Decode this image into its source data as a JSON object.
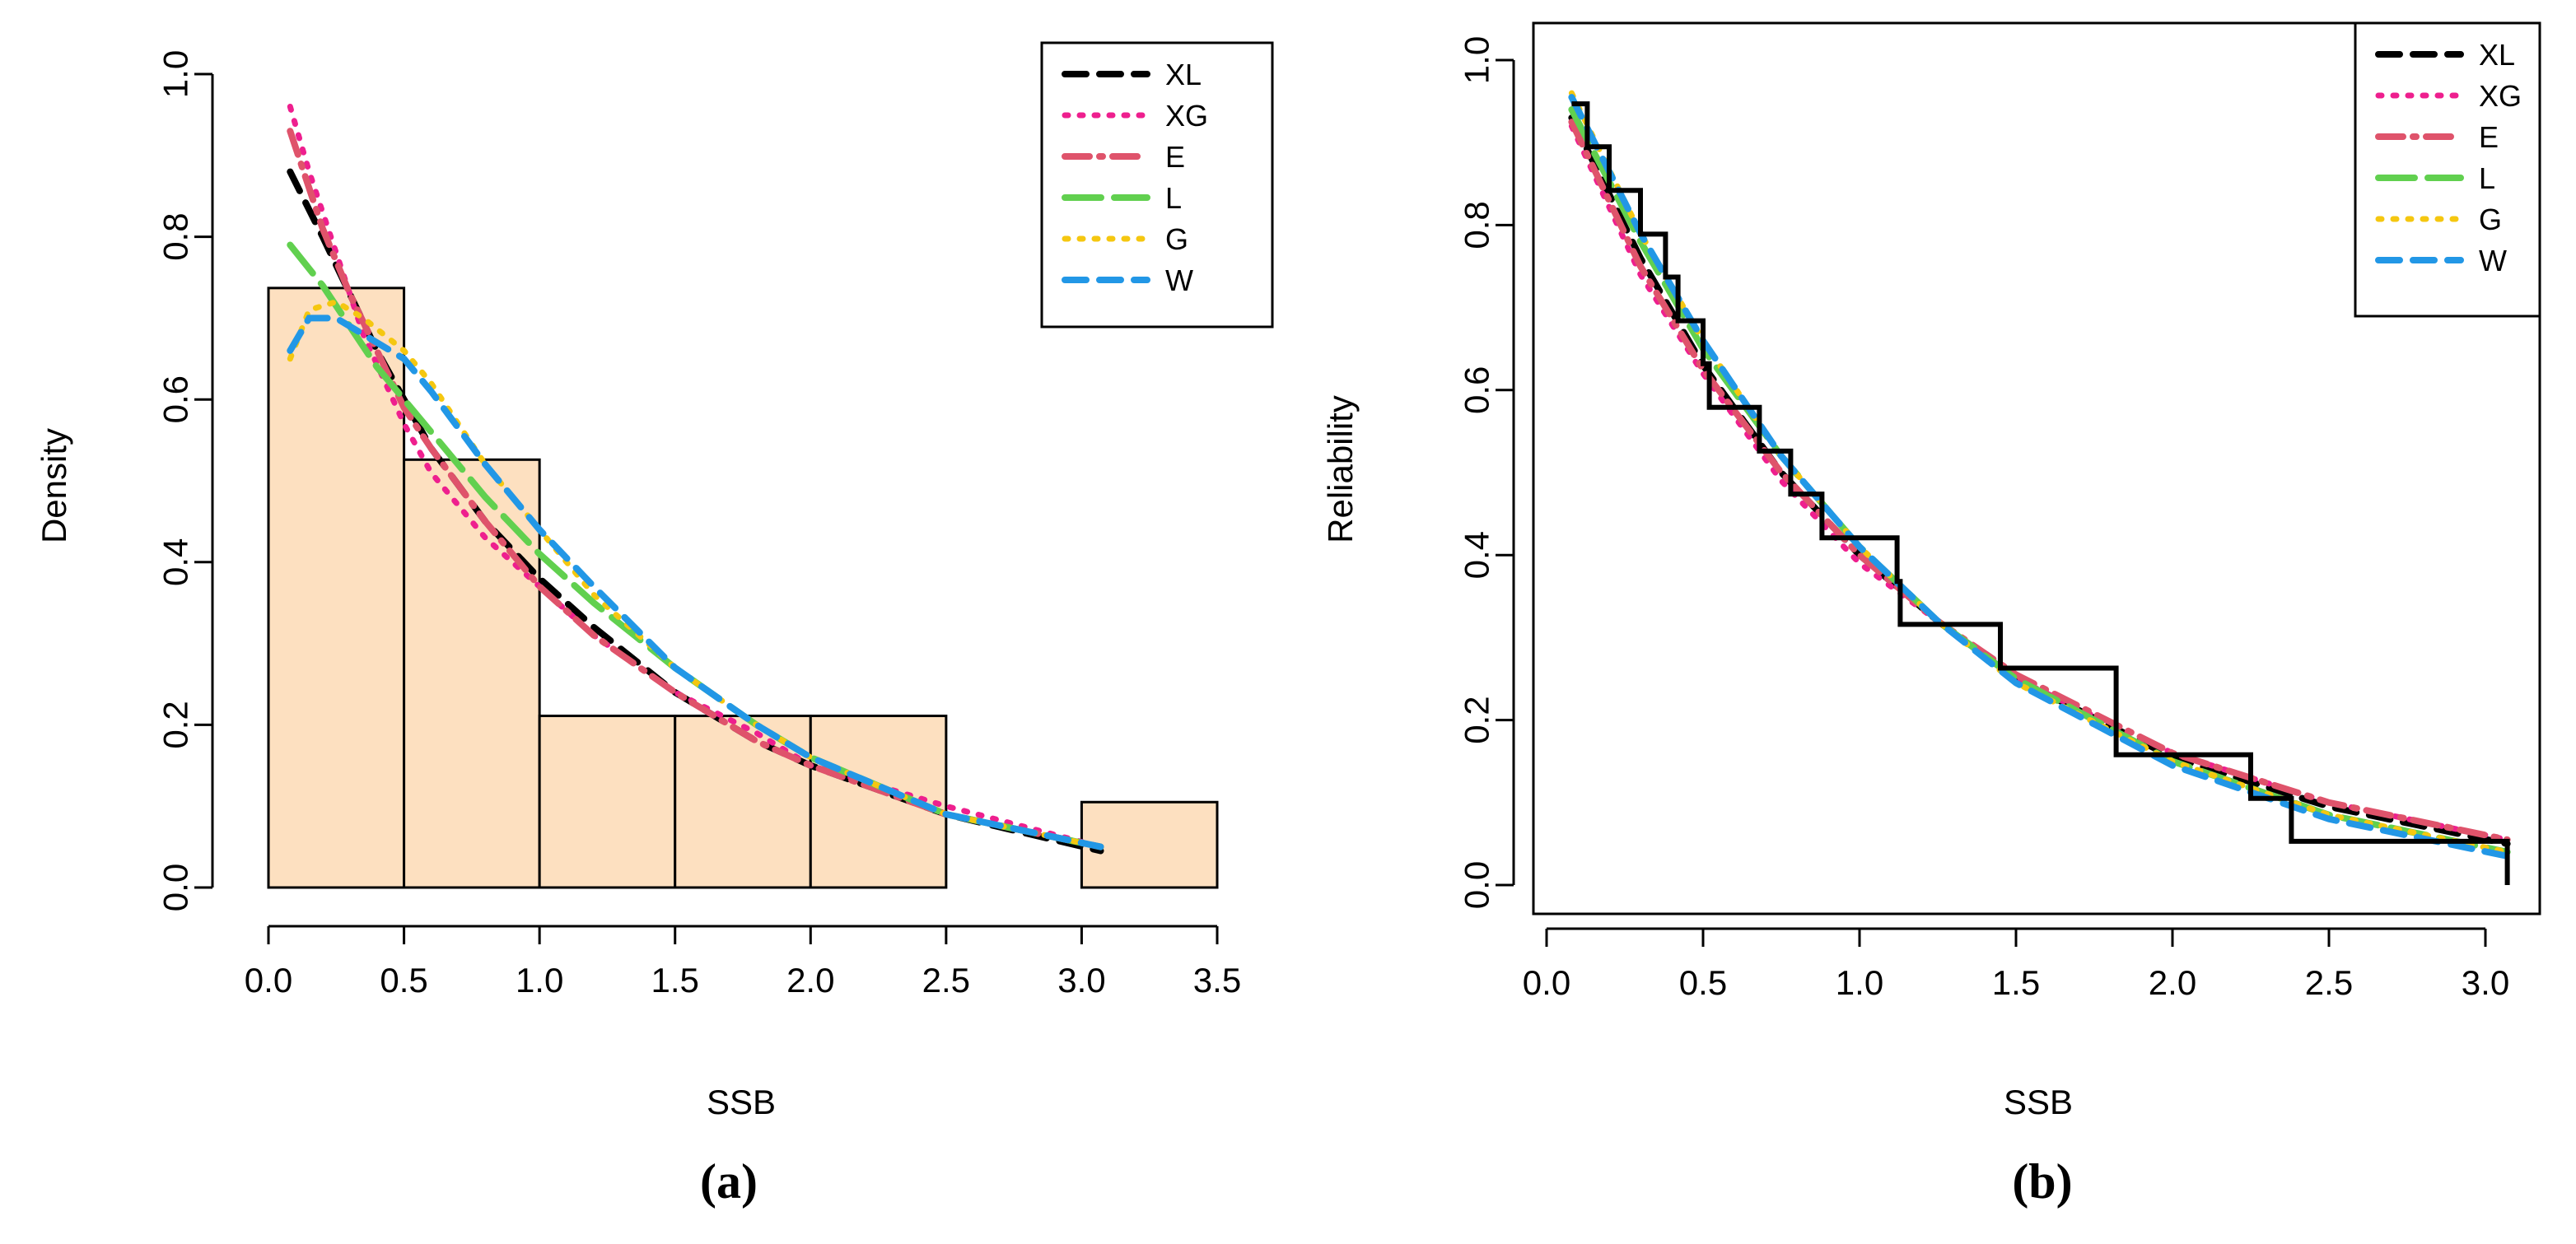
{
  "charts": [
    {
      "caption": "(a)",
      "chart_data": {
        "type": "histogram",
        "xlabel": "SSB",
        "ylabel": "Density",
        "xlim": [
          0,
          3.5
        ],
        "ylim": [
          0,
          1.0
        ],
        "xticks": [
          "0.0",
          "0.5",
          "1.0",
          "1.5",
          "2.0",
          "2.5",
          "3.0",
          "3.5"
        ],
        "yticks": [
          "0.0",
          "0.2",
          "0.4",
          "0.6",
          "0.8",
          "1.0"
        ],
        "histogram": {
          "bins": [
            [
              0.0,
              0.5
            ],
            [
              0.5,
              1.0
            ],
            [
              1.0,
              1.5
            ],
            [
              1.5,
              2.0
            ],
            [
              2.0,
              2.5
            ],
            [
              2.5,
              3.0
            ],
            [
              3.0,
              3.5
            ]
          ],
          "density": [
            0.737,
            0.526,
            0.211,
            0.211,
            0.211,
            0.0,
            0.105
          ],
          "fill": "#fde0c0"
        },
        "legend_position": "top-right",
        "series": [
          {
            "name": "XL",
            "color": "#000000",
            "dash": "dashed",
            "x": [
              0.08,
              0.2,
              0.3,
              0.4,
              0.5,
              0.6,
              0.8,
              1.0,
              1.2,
              1.5,
              1.8,
              2.0,
              2.5,
              3.07
            ],
            "y": [
              0.88,
              0.8,
              0.73,
              0.66,
              0.6,
              0.54,
              0.45,
              0.38,
              0.32,
              0.24,
              0.18,
              0.15,
              0.09,
              0.045
            ]
          },
          {
            "name": "XG",
            "color": "#ee1f8e",
            "dash": "dotted",
            "x": [
              0.08,
              0.15,
              0.25,
              0.35,
              0.5,
              0.6,
              0.8,
              1.0,
              1.2,
              1.5,
              1.8,
              2.0,
              2.5,
              3.07
            ],
            "y": [
              0.96,
              0.88,
              0.78,
              0.68,
              0.57,
              0.51,
              0.43,
              0.37,
              0.31,
              0.24,
              0.19,
              0.15,
              0.1,
              0.05
            ]
          },
          {
            "name": "E",
            "color": "#df536b",
            "dash": "dashdot",
            "x": [
              0.08,
              0.2,
              0.3,
              0.4,
              0.5,
              0.6,
              0.8,
              1.0,
              1.2,
              1.5,
              1.8,
              2.0,
              2.5,
              3.07
            ],
            "y": [
              0.93,
              0.81,
              0.73,
              0.66,
              0.59,
              0.54,
              0.45,
              0.37,
              0.31,
              0.24,
              0.18,
              0.15,
              0.09,
              0.05
            ]
          },
          {
            "name": "L",
            "color": "#61d04f",
            "dash": "longdash",
            "x": [
              0.08,
              0.2,
              0.3,
              0.4,
              0.5,
              0.6,
              0.8,
              1.0,
              1.2,
              1.5,
              1.8,
              2.0,
              2.5,
              3.07
            ],
            "y": [
              0.79,
              0.74,
              0.69,
              0.64,
              0.6,
              0.56,
              0.48,
              0.41,
              0.35,
              0.27,
              0.2,
              0.16,
              0.09,
              0.05
            ]
          },
          {
            "name": "G",
            "color": "#f5c710",
            "dash": "dotted",
            "x": [
              0.08,
              0.15,
              0.25,
              0.35,
              0.5,
              0.6,
              0.8,
              1.0,
              1.2,
              1.5,
              1.8,
              2.0,
              2.5,
              3.07
            ],
            "y": [
              0.65,
              0.71,
              0.72,
              0.7,
              0.66,
              0.62,
              0.52,
              0.44,
              0.36,
              0.27,
              0.2,
              0.16,
              0.09,
              0.05
            ]
          },
          {
            "name": "W",
            "color": "#2297e6",
            "dash": "dashed",
            "x": [
              0.08,
              0.15,
              0.25,
              0.35,
              0.5,
              0.6,
              0.8,
              1.0,
              1.2,
              1.5,
              1.8,
              2.0,
              2.5,
              3.07
            ],
            "y": [
              0.66,
              0.7,
              0.7,
              0.68,
              0.65,
              0.61,
              0.52,
              0.44,
              0.37,
              0.27,
              0.2,
              0.16,
              0.09,
              0.05
            ]
          }
        ]
      }
    },
    {
      "caption": "(b)",
      "chart_data": {
        "type": "line",
        "xlabel": "SSB",
        "ylabel": "Reliability",
        "xlim": [
          0.08,
          3.07
        ],
        "ylim": [
          0,
          1.0
        ],
        "xticks": [
          "0.0",
          "0.5",
          "1.0",
          "1.5",
          "2.0",
          "2.5",
          "3.0"
        ],
        "yticks": [
          "0.0",
          "0.2",
          "0.4",
          "0.6",
          "0.8",
          "1.0"
        ],
        "legend_position": "top-right",
        "empirical_step": {
          "x": [
            0.08,
            0.13,
            0.2,
            0.3,
            0.38,
            0.42,
            0.5,
            0.52,
            0.68,
            0.78,
            0.88,
            1.12,
            1.13,
            1.45,
            1.82,
            2.25,
            2.38,
            3.07
          ],
          "y": [
            0.947,
            0.895,
            0.842,
            0.789,
            0.737,
            0.684,
            0.632,
            0.579,
            0.526,
            0.474,
            0.421,
            0.368,
            0.316,
            0.263,
            0.158,
            0.105,
            0.053,
            0.0
          ]
        },
        "series": [
          {
            "name": "XL",
            "color": "#000000",
            "dash": "dashed",
            "x": [
              0.08,
              0.3,
              0.5,
              0.75,
              1.0,
              1.25,
              1.5,
              2.0,
              2.5,
              3.07
            ],
            "y": [
              0.93,
              0.76,
              0.63,
              0.5,
              0.4,
              0.32,
              0.25,
              0.155,
              0.095,
              0.05
            ]
          },
          {
            "name": "XG",
            "color": "#ee1f8e",
            "dash": "dotted",
            "x": [
              0.08,
              0.3,
              0.5,
              0.75,
              1.0,
              1.25,
              1.5,
              2.0,
              2.5,
              3.07
            ],
            "y": [
              0.92,
              0.74,
              0.62,
              0.49,
              0.39,
              0.32,
              0.25,
              0.16,
              0.1,
              0.055
            ]
          },
          {
            "name": "E",
            "color": "#df536b",
            "dash": "dashdot",
            "x": [
              0.08,
              0.3,
              0.5,
              0.75,
              1.0,
              1.25,
              1.5,
              2.0,
              2.5,
              3.07
            ],
            "y": [
              0.925,
              0.75,
              0.625,
              0.5,
              0.4,
              0.32,
              0.255,
              0.16,
              0.1,
              0.055
            ]
          },
          {
            "name": "L",
            "color": "#61d04f",
            "dash": "longdash",
            "x": [
              0.08,
              0.3,
              0.5,
              0.75,
              1.0,
              1.25,
              1.5,
              2.0,
              2.5,
              3.07
            ],
            "y": [
              0.94,
              0.78,
              0.65,
              0.52,
              0.41,
              0.32,
              0.25,
              0.15,
              0.085,
              0.04
            ]
          },
          {
            "name": "G",
            "color": "#f5c710",
            "dash": "dotted",
            "x": [
              0.08,
              0.3,
              0.5,
              0.75,
              1.0,
              1.25,
              1.5,
              2.0,
              2.5,
              3.07
            ],
            "y": [
              0.96,
              0.79,
              0.66,
              0.52,
              0.41,
              0.32,
              0.245,
              0.15,
              0.085,
              0.04
            ]
          },
          {
            "name": "W",
            "color": "#2297e6",
            "dash": "dashed",
            "x": [
              0.08,
              0.3,
              0.5,
              0.75,
              1.0,
              1.25,
              1.5,
              2.0,
              2.5,
              3.07
            ],
            "y": [
              0.955,
              0.79,
              0.66,
              0.52,
              0.41,
              0.32,
              0.245,
              0.145,
              0.08,
              0.035
            ]
          }
        ]
      }
    }
  ]
}
